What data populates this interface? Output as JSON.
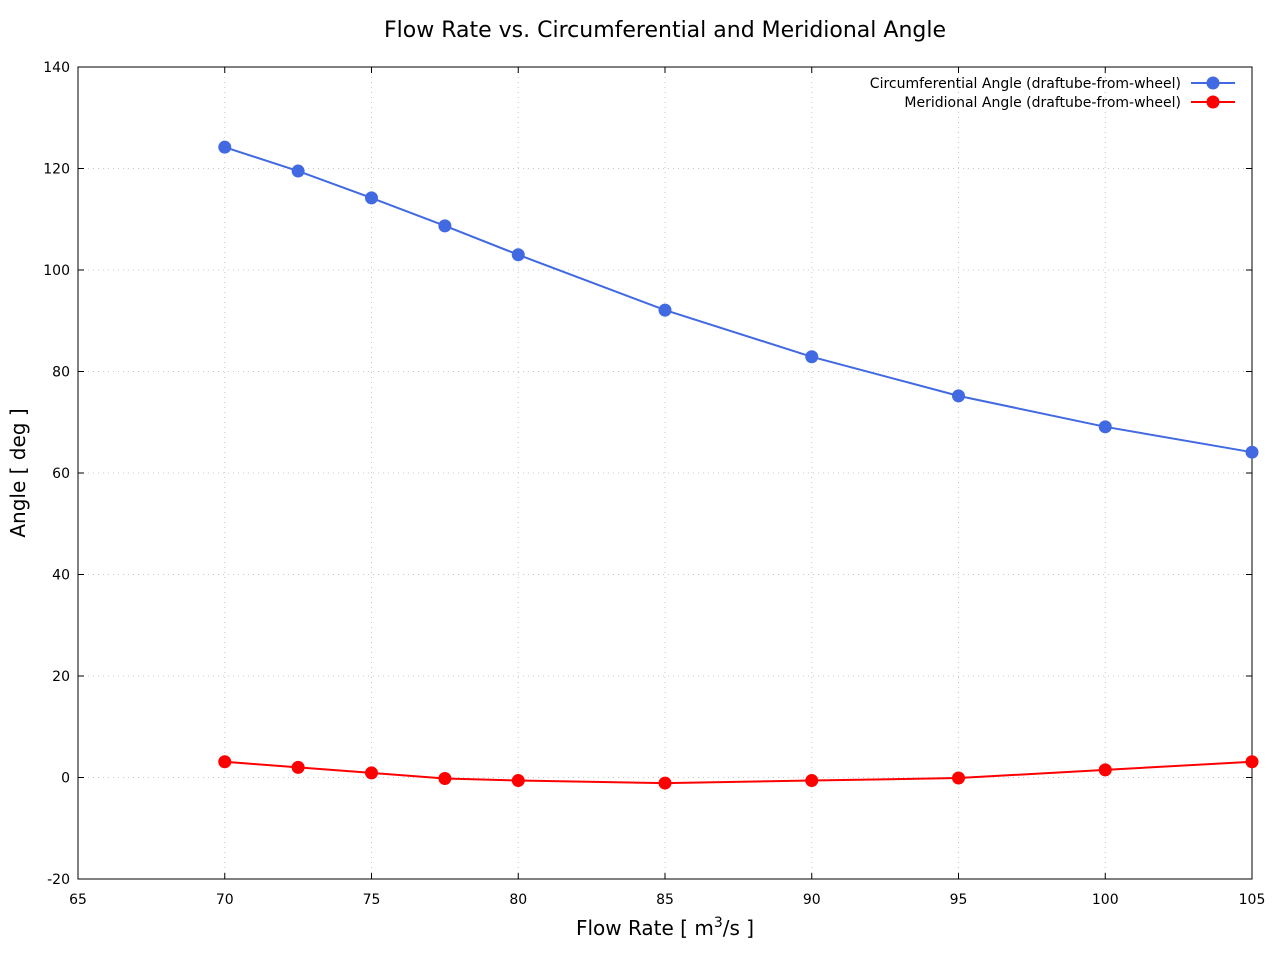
{
  "chart_data": {
    "type": "line",
    "title": "Flow Rate vs. Circumferential and Meridional Angle",
    "xlabel_main": "Flow Rate [ m",
    "xlabel_sup": "3",
    "xlabel_tail": "/s ]",
    "ylabel": "Angle [ deg ]",
    "xlim": [
      65,
      105
    ],
    "ylim": [
      -20,
      140
    ],
    "xticks": [
      65,
      70,
      75,
      80,
      85,
      90,
      95,
      100,
      105
    ],
    "yticks": [
      -20,
      0,
      20,
      40,
      60,
      80,
      100,
      120,
      140
    ],
    "grid": true,
    "legend_position": "top-right",
    "x": [
      70,
      72.5,
      75,
      77.5,
      80,
      85,
      90,
      95,
      100,
      105
    ],
    "series": [
      {
        "name": "Circumferential Angle (draftube-from-wheel)",
        "color": "#4169e1",
        "values": [
          124.2,
          119.5,
          114.2,
          108.7,
          103.0,
          92.1,
          82.9,
          75.2,
          69.1,
          64.1
        ]
      },
      {
        "name": "Meridional Angle (draftube-from-wheel)",
        "color": "#ff0000",
        "values": [
          3.1,
          2.0,
          0.9,
          -0.2,
          -0.6,
          -1.1,
          -0.6,
          -0.1,
          1.5,
          3.1
        ]
      }
    ]
  }
}
